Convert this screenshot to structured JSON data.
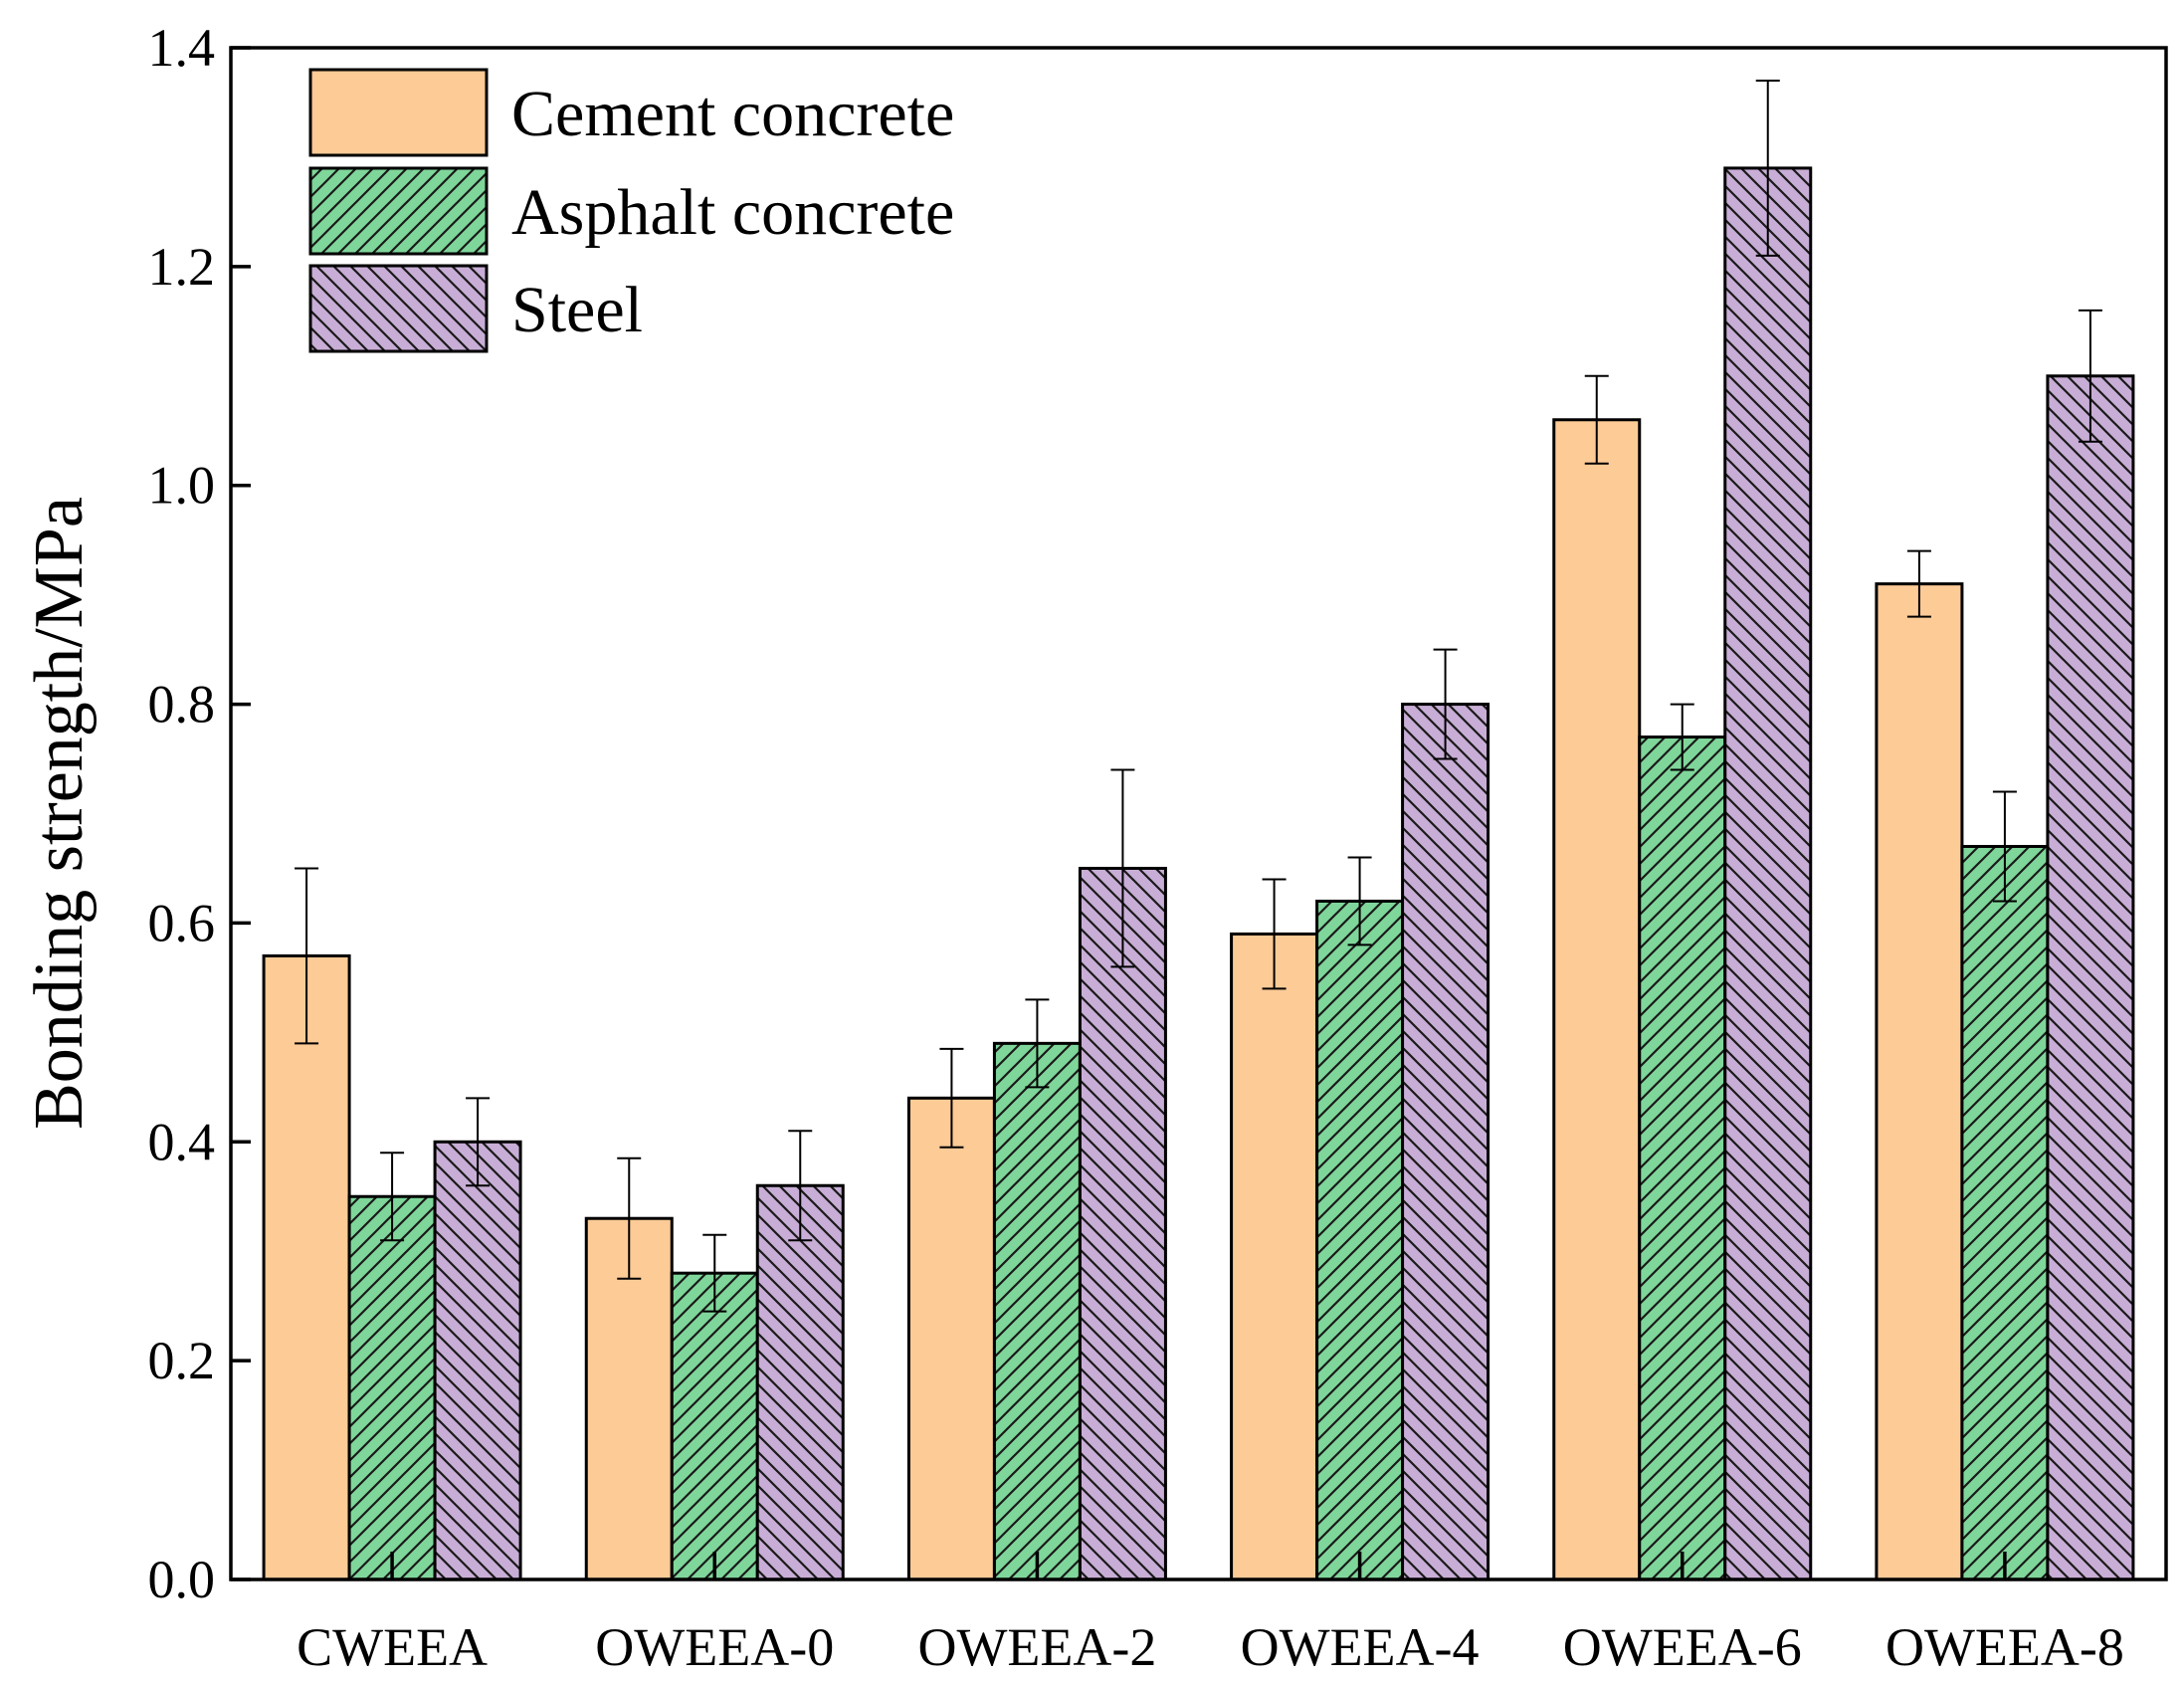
{
  "chart_data": {
    "type": "bar",
    "title": "",
    "xlabel": "",
    "ylabel": "Bonding strength/MPa",
    "ylim": [
      0,
      1.4
    ],
    "yticks": [
      "0.0",
      "0.2",
      "0.4",
      "0.6",
      "0.8",
      "1.0",
      "1.2",
      "1.4"
    ],
    "ytick_values": [
      0,
      0.2,
      0.4,
      0.6,
      0.8,
      1.0,
      1.2,
      1.4
    ],
    "categories": [
      "CWEEA",
      "OWEEA-0",
      "OWEEA-2",
      "OWEEA-4",
      "OWEEA-6",
      "OWEEA-8"
    ],
    "legend_position": "top-left",
    "grid": false,
    "series": [
      {
        "name": "Cement concrete",
        "color": "#FDCB96",
        "pattern": "none",
        "values": [
          0.57,
          0.33,
          0.44,
          0.59,
          1.06,
          0.91
        ],
        "errors": [
          0.08,
          0.055,
          0.045,
          0.05,
          0.04,
          0.03
        ]
      },
      {
        "name": "Asphalt concrete",
        "color": "#7FD69A",
        "pattern": "forward-diagonal",
        "values": [
          0.35,
          0.28,
          0.49,
          0.62,
          0.77,
          0.67
        ],
        "errors": [
          0.04,
          0.035,
          0.04,
          0.04,
          0.03,
          0.05
        ]
      },
      {
        "name": "Steel",
        "color": "#C8AED6",
        "pattern": "back-diagonal",
        "values": [
          0.4,
          0.36,
          0.65,
          0.8,
          1.29,
          1.1
        ],
        "errors": [
          0.04,
          0.05,
          0.09,
          0.05,
          0.08,
          0.06
        ]
      }
    ]
  }
}
